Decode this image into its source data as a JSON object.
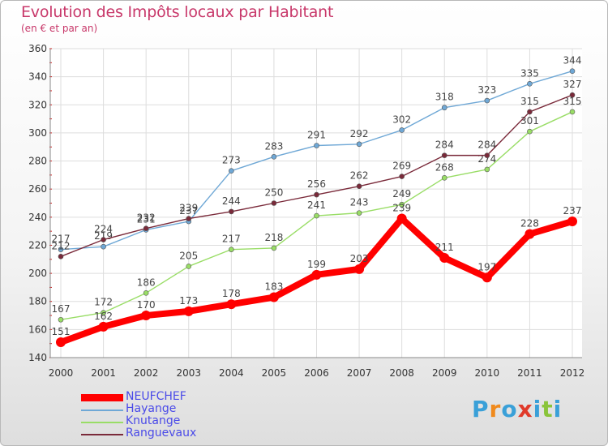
{
  "chart_data": {
    "type": "line",
    "title": "Evolution des Impôts locaux par Habitant",
    "subtitle": "(en € et par an)",
    "categories": [
      "2000",
      "2001",
      "2002",
      "2003",
      "2004",
      "2005",
      "2006",
      "2007",
      "2008",
      "2009",
      "2010",
      "2011",
      "2012"
    ],
    "ylim": [
      140,
      360
    ],
    "yticks": [
      140,
      160,
      180,
      200,
      220,
      240,
      260,
      280,
      300,
      320,
      340,
      360
    ],
    "grid": true,
    "legend_position": "bottom-left",
    "series": [
      {
        "name": "NEUFCHEF",
        "color": "#ff0000",
        "values": [
          151,
          162,
          170,
          173,
          178,
          183,
          199,
          203,
          239,
          211,
          197,
          228,
          237
        ]
      },
      {
        "name": "Hayange",
        "color": "#6fa8d6",
        "values": [
          217,
          219,
          231,
          237,
          273,
          283,
          291,
          292,
          302,
          318,
          323,
          335,
          344
        ]
      },
      {
        "name": "Knutange",
        "color": "#99dd66",
        "values": [
          167,
          172,
          186,
          205,
          217,
          218,
          241,
          243,
          249,
          268,
          274,
          301,
          315
        ]
      },
      {
        "name": "Ranguevaux",
        "color": "#7a2a3a",
        "values": [
          212,
          224,
          232,
          239,
          244,
          250,
          256,
          262,
          269,
          284,
          284,
          315,
          327
        ]
      }
    ]
  },
  "logo": {
    "text": "Proxiti",
    "colors": [
      "#3aa0d8",
      "#f08a1c",
      "#3aa0d8",
      "#e03a2a",
      "#3aa0d8",
      "#8ac43a",
      "#3aa0d8"
    ]
  }
}
